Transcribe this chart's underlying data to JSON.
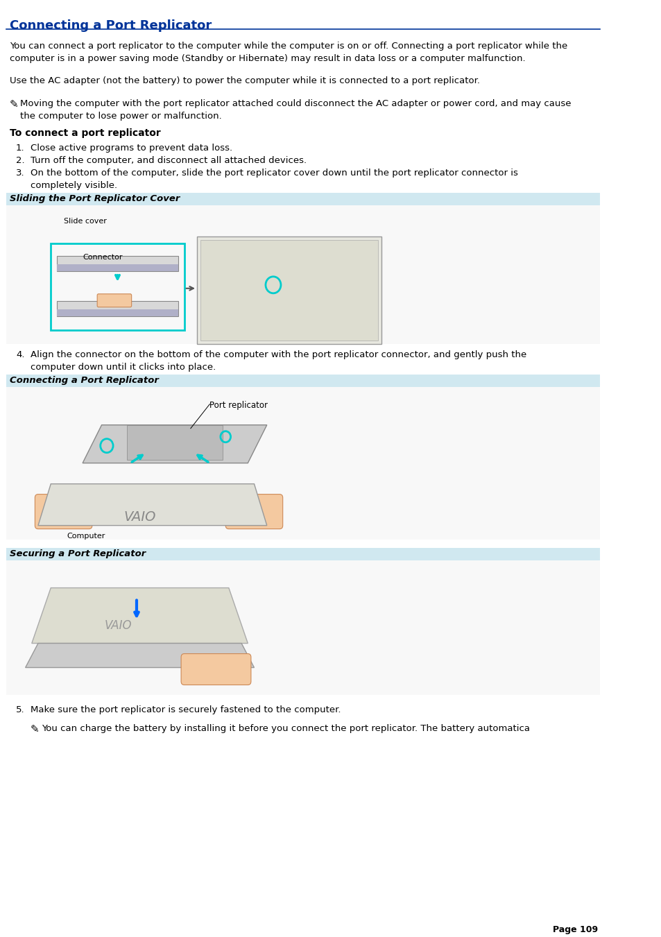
{
  "title": "Connecting a Port Replicator",
  "title_color": "#003399",
  "bg_color": "#ffffff",
  "line_color": "#003399",
  "section_bg": "#d0e8f0",
  "body_font_size": 9.5,
  "title_font_size": 13,
  "paragraph1": "You can connect a port replicator to the computer while the computer is on or off. Connecting a port replicator while the\ncomputer is in a power saving mode (Standby or Hibernate) may result in data loss or a computer malfunction.",
  "paragraph2": "Use the AC adapter (not the battery) to power the computer while it is connected to a port replicator.",
  "note1": "Moving the computer with the port replicator attached could disconnect the AC adapter or power cord, and may cause\nthe computer to lose power or malfunction.",
  "bold_header": "To connect a port replicator",
  "step1": "Close active programs to prevent data loss.",
  "step2": "Turn off the computer, and disconnect all attached devices.",
  "step3": "On the bottom of the computer, slide the port replicator cover down until the port replicator connector is\ncompletely visible.",
  "section1_label": "Sliding the Port Replicator Cover",
  "step4": "Align the connector on the bottom of the computer with the port replicator connector, and gently push the\ncomputer down until it clicks into place.",
  "section2_label": "Connecting a Port Replicator",
  "section3_label": "Securing a Port Replicator",
  "step5": "Make sure the port replicator is securely fastened to the computer.",
  "note2": "You can charge the battery by installing it before you connect the port replicator. The battery automatica",
  "page_num": "Page 109"
}
